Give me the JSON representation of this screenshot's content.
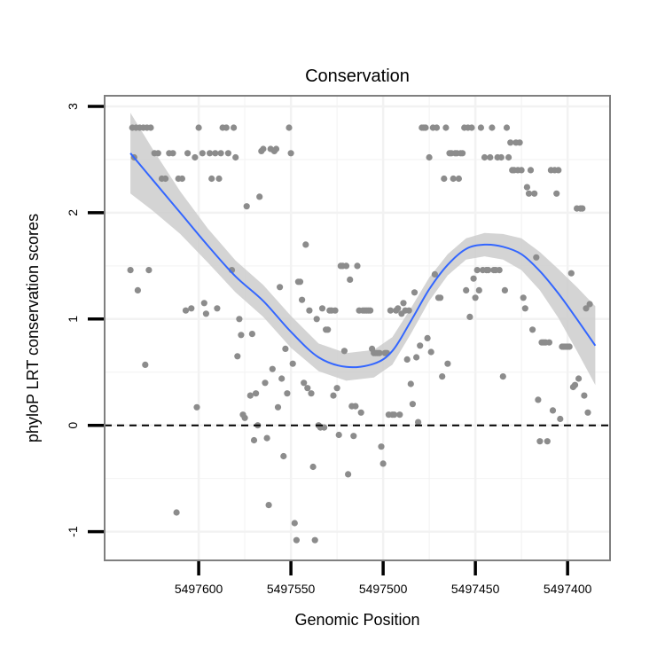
{
  "chart_data": {
    "type": "scatter",
    "title": "Conservation",
    "xlabel": "Genomic Position",
    "ylabel": "phyloP LRT conservation scores",
    "xlim": [
      5497651,
      5497377
    ],
    "ylim": [
      -1.27,
      3.1
    ],
    "x_ticks": [
      5497600,
      5497550,
      5497500,
      5497450,
      5497400
    ],
    "x_tick_labels": [
      "5497600",
      "5497550",
      "5497500",
      "5497450",
      "5497400"
    ],
    "y_ticks": [
      -1,
      0,
      1,
      2,
      3
    ],
    "y_tick_labels": [
      "-1",
      "0",
      "1",
      "2",
      "3"
    ],
    "grid": true,
    "reference_line": {
      "y": 0,
      "style": "dashed"
    },
    "colors": {
      "points": "#8c8c8c",
      "smooth": "#3366ff",
      "ribbon": "#cccccc",
      "panel_border": "#7f7f7f",
      "grid": "#f2f2f2",
      "reference_line": "#000000"
    },
    "smooth": {
      "x": [
        5497637,
        5497625,
        5497610,
        5497595,
        5497580,
        5497565,
        5497550,
        5497535,
        5497520,
        5497505,
        5497495,
        5497485,
        5497475,
        5497465,
        5497455,
        5497445,
        5497435,
        5497425,
        5497415,
        5497405,
        5497395,
        5497385
      ],
      "y": [
        2.56,
        2.31,
        2.0,
        1.69,
        1.4,
        1.17,
        0.88,
        0.64,
        0.55,
        0.58,
        0.7,
        0.98,
        1.28,
        1.51,
        1.66,
        1.7,
        1.68,
        1.61,
        1.45,
        1.24,
        1.0,
        0.75
      ],
      "lower": [
        2.18,
        2.02,
        1.8,
        1.53,
        1.25,
        1.02,
        0.73,
        0.51,
        0.42,
        0.45,
        0.57,
        0.86,
        1.17,
        1.41,
        1.56,
        1.59,
        1.56,
        1.46,
        1.27,
        1.01,
        0.7,
        0.38
      ],
      "upper": [
        2.94,
        2.6,
        2.2,
        1.85,
        1.55,
        1.32,
        1.03,
        0.77,
        0.68,
        0.71,
        0.83,
        1.1,
        1.39,
        1.61,
        1.76,
        1.81,
        1.8,
        1.76,
        1.63,
        1.47,
        1.3,
        1.12
      ]
    },
    "points": [
      {
        "x": 5497637,
        "y": 1.46
      },
      {
        "x": 5497636,
        "y": 2.8
      },
      {
        "x": 5497635,
        "y": 2.52
      },
      {
        "x": 5497634,
        "y": 2.8
      },
      {
        "x": 5497633,
        "y": 1.27
      },
      {
        "x": 5497632,
        "y": 2.8
      },
      {
        "x": 5497630,
        "y": 2.8
      },
      {
        "x": 5497629,
        "y": 0.57
      },
      {
        "x": 5497628,
        "y": 2.8
      },
      {
        "x": 5497627,
        "y": 1.46
      },
      {
        "x": 5497626,
        "y": 2.8
      },
      {
        "x": 5497624,
        "y": 2.56
      },
      {
        "x": 5497622,
        "y": 2.56
      },
      {
        "x": 5497620,
        "y": 2.32
      },
      {
        "x": 5497618,
        "y": 2.32
      },
      {
        "x": 5497616,
        "y": 2.56
      },
      {
        "x": 5497614,
        "y": 2.56
      },
      {
        "x": 5497612,
        "y": -0.82
      },
      {
        "x": 5497611,
        "y": 2.32
      },
      {
        "x": 5497609,
        "y": 2.32
      },
      {
        "x": 5497607,
        "y": 1.08
      },
      {
        "x": 5497606,
        "y": 2.56
      },
      {
        "x": 5497604,
        "y": 1.1
      },
      {
        "x": 5497602,
        "y": 2.52
      },
      {
        "x": 5497601,
        "y": 0.17
      },
      {
        "x": 5497600,
        "y": 2.8
      },
      {
        "x": 5497598,
        "y": 2.56
      },
      {
        "x": 5497597,
        "y": 1.15
      },
      {
        "x": 5497596,
        "y": 1.05
      },
      {
        "x": 5497594,
        "y": 2.56
      },
      {
        "x": 5497593,
        "y": 2.32
      },
      {
        "x": 5497591,
        "y": 2.56
      },
      {
        "x": 5497590,
        "y": 1.1
      },
      {
        "x": 5497589,
        "y": 2.32
      },
      {
        "x": 5497588,
        "y": 2.56
      },
      {
        "x": 5497587,
        "y": 2.8
      },
      {
        "x": 5497585,
        "y": 2.8
      },
      {
        "x": 5497584,
        "y": 2.56
      },
      {
        "x": 5497582,
        "y": 1.46
      },
      {
        "x": 5497581,
        "y": 2.8
      },
      {
        "x": 5497580,
        "y": 2.52
      },
      {
        "x": 5497579,
        "y": 0.65
      },
      {
        "x": 5497578,
        "y": 1.0
      },
      {
        "x": 5497577,
        "y": 0.85
      },
      {
        "x": 5497576,
        "y": 0.1
      },
      {
        "x": 5497575,
        "y": 0.07
      },
      {
        "x": 5497574,
        "y": 2.06
      },
      {
        "x": 5497572,
        "y": 0.28
      },
      {
        "x": 5497571,
        "y": 0.86
      },
      {
        "x": 5497570,
        "y": -0.14
      },
      {
        "x": 5497569,
        "y": 0.3
      },
      {
        "x": 5497568,
        "y": 0.0
      },
      {
        "x": 5497567,
        "y": 2.15
      },
      {
        "x": 5497566,
        "y": 2.58
      },
      {
        "x": 5497565,
        "y": 2.6
      },
      {
        "x": 5497564,
        "y": 0.4
      },
      {
        "x": 5497563,
        "y": -0.12
      },
      {
        "x": 5497562,
        "y": -0.75
      },
      {
        "x": 5497561,
        "y": 2.6
      },
      {
        "x": 5497560,
        "y": 0.53
      },
      {
        "x": 5497559,
        "y": 2.58
      },
      {
        "x": 5497558,
        "y": 2.6
      },
      {
        "x": 5497557,
        "y": 0.17
      },
      {
        "x": 5497556,
        "y": 1.3
      },
      {
        "x": 5497555,
        "y": 0.44
      },
      {
        "x": 5497554,
        "y": -0.29
      },
      {
        "x": 5497553,
        "y": 0.72
      },
      {
        "x": 5497552,
        "y": 0.3
      },
      {
        "x": 5497551,
        "y": 2.8
      },
      {
        "x": 5497550,
        "y": 2.56
      },
      {
        "x": 5497549,
        "y": 0.58
      },
      {
        "x": 5497548,
        "y": -0.92
      },
      {
        "x": 5497547,
        "y": -1.08
      },
      {
        "x": 5497546,
        "y": 1.35
      },
      {
        "x": 5497545,
        "y": 1.35
      },
      {
        "x": 5497544,
        "y": 1.18
      },
      {
        "x": 5497543,
        "y": 0.4
      },
      {
        "x": 5497542,
        "y": 1.7
      },
      {
        "x": 5497541,
        "y": 0.35
      },
      {
        "x": 5497540,
        "y": 1.08
      },
      {
        "x": 5497539,
        "y": 0.3
      },
      {
        "x": 5497538,
        "y": -0.39
      },
      {
        "x": 5497537,
        "y": -1.08
      },
      {
        "x": 5497536,
        "y": 1.0
      },
      {
        "x": 5497535,
        "y": 0.0
      },
      {
        "x": 5497534,
        "y": -0.02
      },
      {
        "x": 5497533,
        "y": 1.1
      },
      {
        "x": 5497532,
        "y": -0.02
      },
      {
        "x": 5497531,
        "y": 0.9
      },
      {
        "x": 5497530,
        "y": 0.9
      },
      {
        "x": 5497529,
        "y": 1.08
      },
      {
        "x": 5497528,
        "y": 1.08
      },
      {
        "x": 5497527,
        "y": 0.28
      },
      {
        "x": 5497526,
        "y": 1.08
      },
      {
        "x": 5497525,
        "y": 0.35
      },
      {
        "x": 5497524,
        "y": -0.09
      },
      {
        "x": 5497523,
        "y": 1.5
      },
      {
        "x": 5497522,
        "y": 1.5
      },
      {
        "x": 5497521,
        "y": 0.7
      },
      {
        "x": 5497520,
        "y": 1.5
      },
      {
        "x": 5497519,
        "y": -0.46
      },
      {
        "x": 5497518,
        "y": 1.37
      },
      {
        "x": 5497517,
        "y": 0.18
      },
      {
        "x": 5497516,
        "y": -0.1
      },
      {
        "x": 5497515,
        "y": 0.18
      },
      {
        "x": 5497514,
        "y": 1.5
      },
      {
        "x": 5497513,
        "y": 1.08
      },
      {
        "x": 5497512,
        "y": 0.12
      },
      {
        "x": 5497511,
        "y": 1.08
      },
      {
        "x": 5497510,
        "y": 1.08
      },
      {
        "x": 5497509,
        "y": 1.08
      },
      {
        "x": 5497508,
        "y": 1.08
      },
      {
        "x": 5497507,
        "y": 1.08
      },
      {
        "x": 5497506,
        "y": 0.72
      },
      {
        "x": 5497505,
        "y": 0.68
      },
      {
        "x": 5497504,
        "y": 0.68
      },
      {
        "x": 5497503,
        "y": 0.68
      },
      {
        "x": 5497502,
        "y": 0.68
      },
      {
        "x": 5497501,
        "y": -0.2
      },
      {
        "x": 5497500,
        "y": -0.36
      },
      {
        "x": 5497499,
        "y": 0.68
      },
      {
        "x": 5497498,
        "y": 0.68
      },
      {
        "x": 5497497,
        "y": 0.1
      },
      {
        "x": 5497496,
        "y": 1.08
      },
      {
        "x": 5497495,
        "y": 0.1
      },
      {
        "x": 5497494,
        "y": 0.1
      },
      {
        "x": 5497493,
        "y": 1.08
      },
      {
        "x": 5497492,
        "y": 1.1
      },
      {
        "x": 5497491,
        "y": 0.1
      },
      {
        "x": 5497490,
        "y": 1.05
      },
      {
        "x": 5497489,
        "y": 1.15
      },
      {
        "x": 5497488,
        "y": 1.08
      },
      {
        "x": 5497487,
        "y": 0.62
      },
      {
        "x": 5497486,
        "y": 1.08
      },
      {
        "x": 5497485,
        "y": 0.39
      },
      {
        "x": 5497484,
        "y": 0.2
      },
      {
        "x": 5497483,
        "y": 1.25
      },
      {
        "x": 5497482,
        "y": 0.64
      },
      {
        "x": 5497481,
        "y": 0.03
      },
      {
        "x": 5497480,
        "y": 0.75
      },
      {
        "x": 5497479,
        "y": 2.8
      },
      {
        "x": 5497478,
        "y": 2.8
      },
      {
        "x": 5497477,
        "y": 2.8
      },
      {
        "x": 5497476,
        "y": 0.82
      },
      {
        "x": 5497475,
        "y": 2.52
      },
      {
        "x": 5497474,
        "y": 0.69
      },
      {
        "x": 5497473,
        "y": 2.8
      },
      {
        "x": 5497472,
        "y": 1.42
      },
      {
        "x": 5497471,
        "y": 2.8
      },
      {
        "x": 5497470,
        "y": 1.2
      },
      {
        "x": 5497469,
        "y": 1.2
      },
      {
        "x": 5497468,
        "y": 0.46
      },
      {
        "x": 5497467,
        "y": 2.32
      },
      {
        "x": 5497466,
        "y": 2.8
      },
      {
        "x": 5497465,
        "y": 0.58
      },
      {
        "x": 5497464,
        "y": 2.56
      },
      {
        "x": 5497463,
        "y": 2.56
      },
      {
        "x": 5497462,
        "y": 2.32
      },
      {
        "x": 5497461,
        "y": 2.56
      },
      {
        "x": 5497460,
        "y": 2.56
      },
      {
        "x": 5497459,
        "y": 2.32
      },
      {
        "x": 5497458,
        "y": 2.56
      },
      {
        "x": 5497457,
        "y": 2.56
      },
      {
        "x": 5497456,
        "y": 2.8
      },
      {
        "x": 5497455,
        "y": 1.27
      },
      {
        "x": 5497454,
        "y": 2.8
      },
      {
        "x": 5497453,
        "y": 1.02
      },
      {
        "x": 5497452,
        "y": 2.8
      },
      {
        "x": 5497451,
        "y": 1.38
      },
      {
        "x": 5497450,
        "y": 1.2
      },
      {
        "x": 5497449,
        "y": 1.46
      },
      {
        "x": 5497448,
        "y": 1.27
      },
      {
        "x": 5497447,
        "y": 2.8
      },
      {
        "x": 5497446,
        "y": 1.46
      },
      {
        "x": 5497445,
        "y": 2.52
      },
      {
        "x": 5497444,
        "y": 1.46
      },
      {
        "x": 5497443,
        "y": 1.46
      },
      {
        "x": 5497442,
        "y": 2.52
      },
      {
        "x": 5497441,
        "y": 2.8
      },
      {
        "x": 5497440,
        "y": 1.46
      },
      {
        "x": 5497439,
        "y": 1.46
      },
      {
        "x": 5497438,
        "y": 2.52
      },
      {
        "x": 5497437,
        "y": 1.46
      },
      {
        "x": 5497436,
        "y": 2.52
      },
      {
        "x": 5497435,
        "y": 0.46
      },
      {
        "x": 5497434,
        "y": 1.27
      },
      {
        "x": 5497433,
        "y": 2.8
      },
      {
        "x": 5497432,
        "y": 2.52
      },
      {
        "x": 5497431,
        "y": 2.66
      },
      {
        "x": 5497430,
        "y": 2.4
      },
      {
        "x": 5497429,
        "y": 2.4
      },
      {
        "x": 5497428,
        "y": 2.66
      },
      {
        "x": 5497427,
        "y": 2.4
      },
      {
        "x": 5497426,
        "y": 2.66
      },
      {
        "x": 5497425,
        "y": 2.4
      },
      {
        "x": 5497424,
        "y": 1.2
      },
      {
        "x": 5497423,
        "y": 1.1
      },
      {
        "x": 5497422,
        "y": 2.24
      },
      {
        "x": 5497421,
        "y": 2.18
      },
      {
        "x": 5497420,
        "y": 2.4
      },
      {
        "x": 5497419,
        "y": 0.9
      },
      {
        "x": 5497418,
        "y": 2.18
      },
      {
        "x": 5497417,
        "y": 1.58
      },
      {
        "x": 5497416,
        "y": 0.24
      },
      {
        "x": 5497415,
        "y": -0.15
      },
      {
        "x": 5497414,
        "y": 0.78
      },
      {
        "x": 5497413,
        "y": 0.78
      },
      {
        "x": 5497412,
        "y": 0.78
      },
      {
        "x": 5497411,
        "y": -0.15
      },
      {
        "x": 5497410,
        "y": 0.78
      },
      {
        "x": 5497409,
        "y": 2.4
      },
      {
        "x": 5497408,
        "y": 0.14
      },
      {
        "x": 5497407,
        "y": 2.4
      },
      {
        "x": 5497406,
        "y": 2.18
      },
      {
        "x": 5497405,
        "y": 2.4
      },
      {
        "x": 5497404,
        "y": 0.06
      },
      {
        "x": 5497403,
        "y": 0.74
      },
      {
        "x": 5497402,
        "y": 0.74
      },
      {
        "x": 5497401,
        "y": 0.74
      },
      {
        "x": 5497400,
        "y": 0.74
      },
      {
        "x": 5497399,
        "y": 0.74
      },
      {
        "x": 5497398,
        "y": 1.43
      },
      {
        "x": 5497397,
        "y": 0.36
      },
      {
        "x": 5497396,
        "y": 0.38
      },
      {
        "x": 5497395,
        "y": 2.04
      },
      {
        "x": 5497394,
        "y": 0.44
      },
      {
        "x": 5497393,
        "y": 2.04
      },
      {
        "x": 5497392,
        "y": 2.04
      },
      {
        "x": 5497391,
        "y": 0.28
      },
      {
        "x": 5497390,
        "y": 1.1
      },
      {
        "x": 5497389,
        "y": 0.12
      },
      {
        "x": 5497388,
        "y": 1.14
      }
    ]
  }
}
